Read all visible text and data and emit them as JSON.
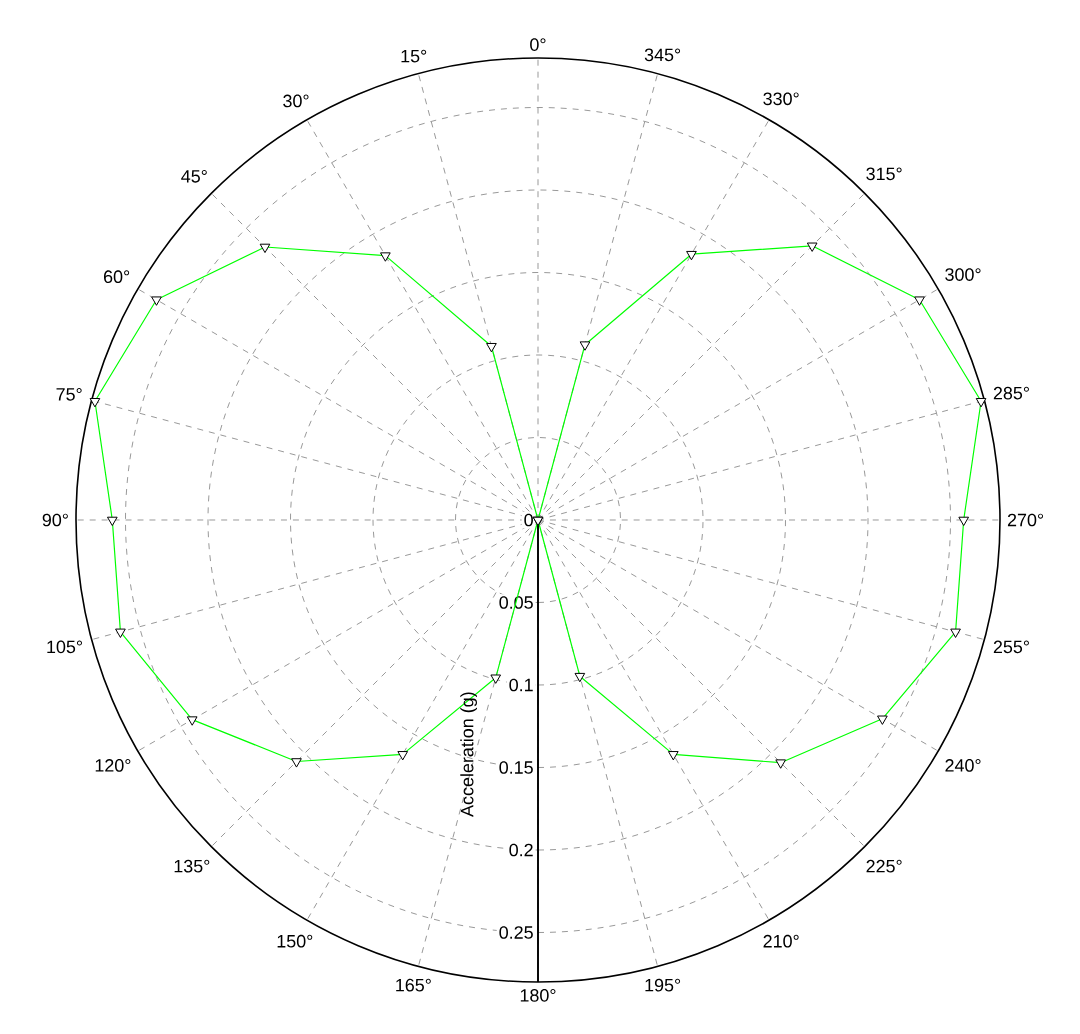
{
  "chart_data": {
    "type": "radar",
    "ylabel": "Acceleration (g)",
    "categories": [
      "0°",
      "345°",
      "330°",
      "315°",
      "300°",
      "285°",
      "270°",
      "255°",
      "240°",
      "225°",
      "210°",
      "195°",
      "180°",
      "165°",
      "150°",
      "135°",
      "120°",
      "105°",
      "90°",
      "75°",
      "60°",
      "45°",
      "30°",
      "15°"
    ],
    "series": [
      {
        "color": "#00ff00",
        "values": [
          0,
          0.11,
          0.186,
          0.235,
          0.267,
          0.278,
          0.258,
          0.262,
          0.241,
          0.208,
          0.164,
          0.098,
          0,
          0.099,
          0.164,
          0.207,
          0.242,
          0.262,
          0.258,
          0.278,
          0.267,
          0.234,
          0.185,
          0.109
        ]
      }
    ],
    "ylim": [
      0,
      0.28
    ],
    "yticks": [
      0,
      0.05,
      0.1,
      0.15,
      0.2,
      0.25
    ],
    "grid": true,
    "marker": "triangle",
    "line_style": "solid"
  }
}
